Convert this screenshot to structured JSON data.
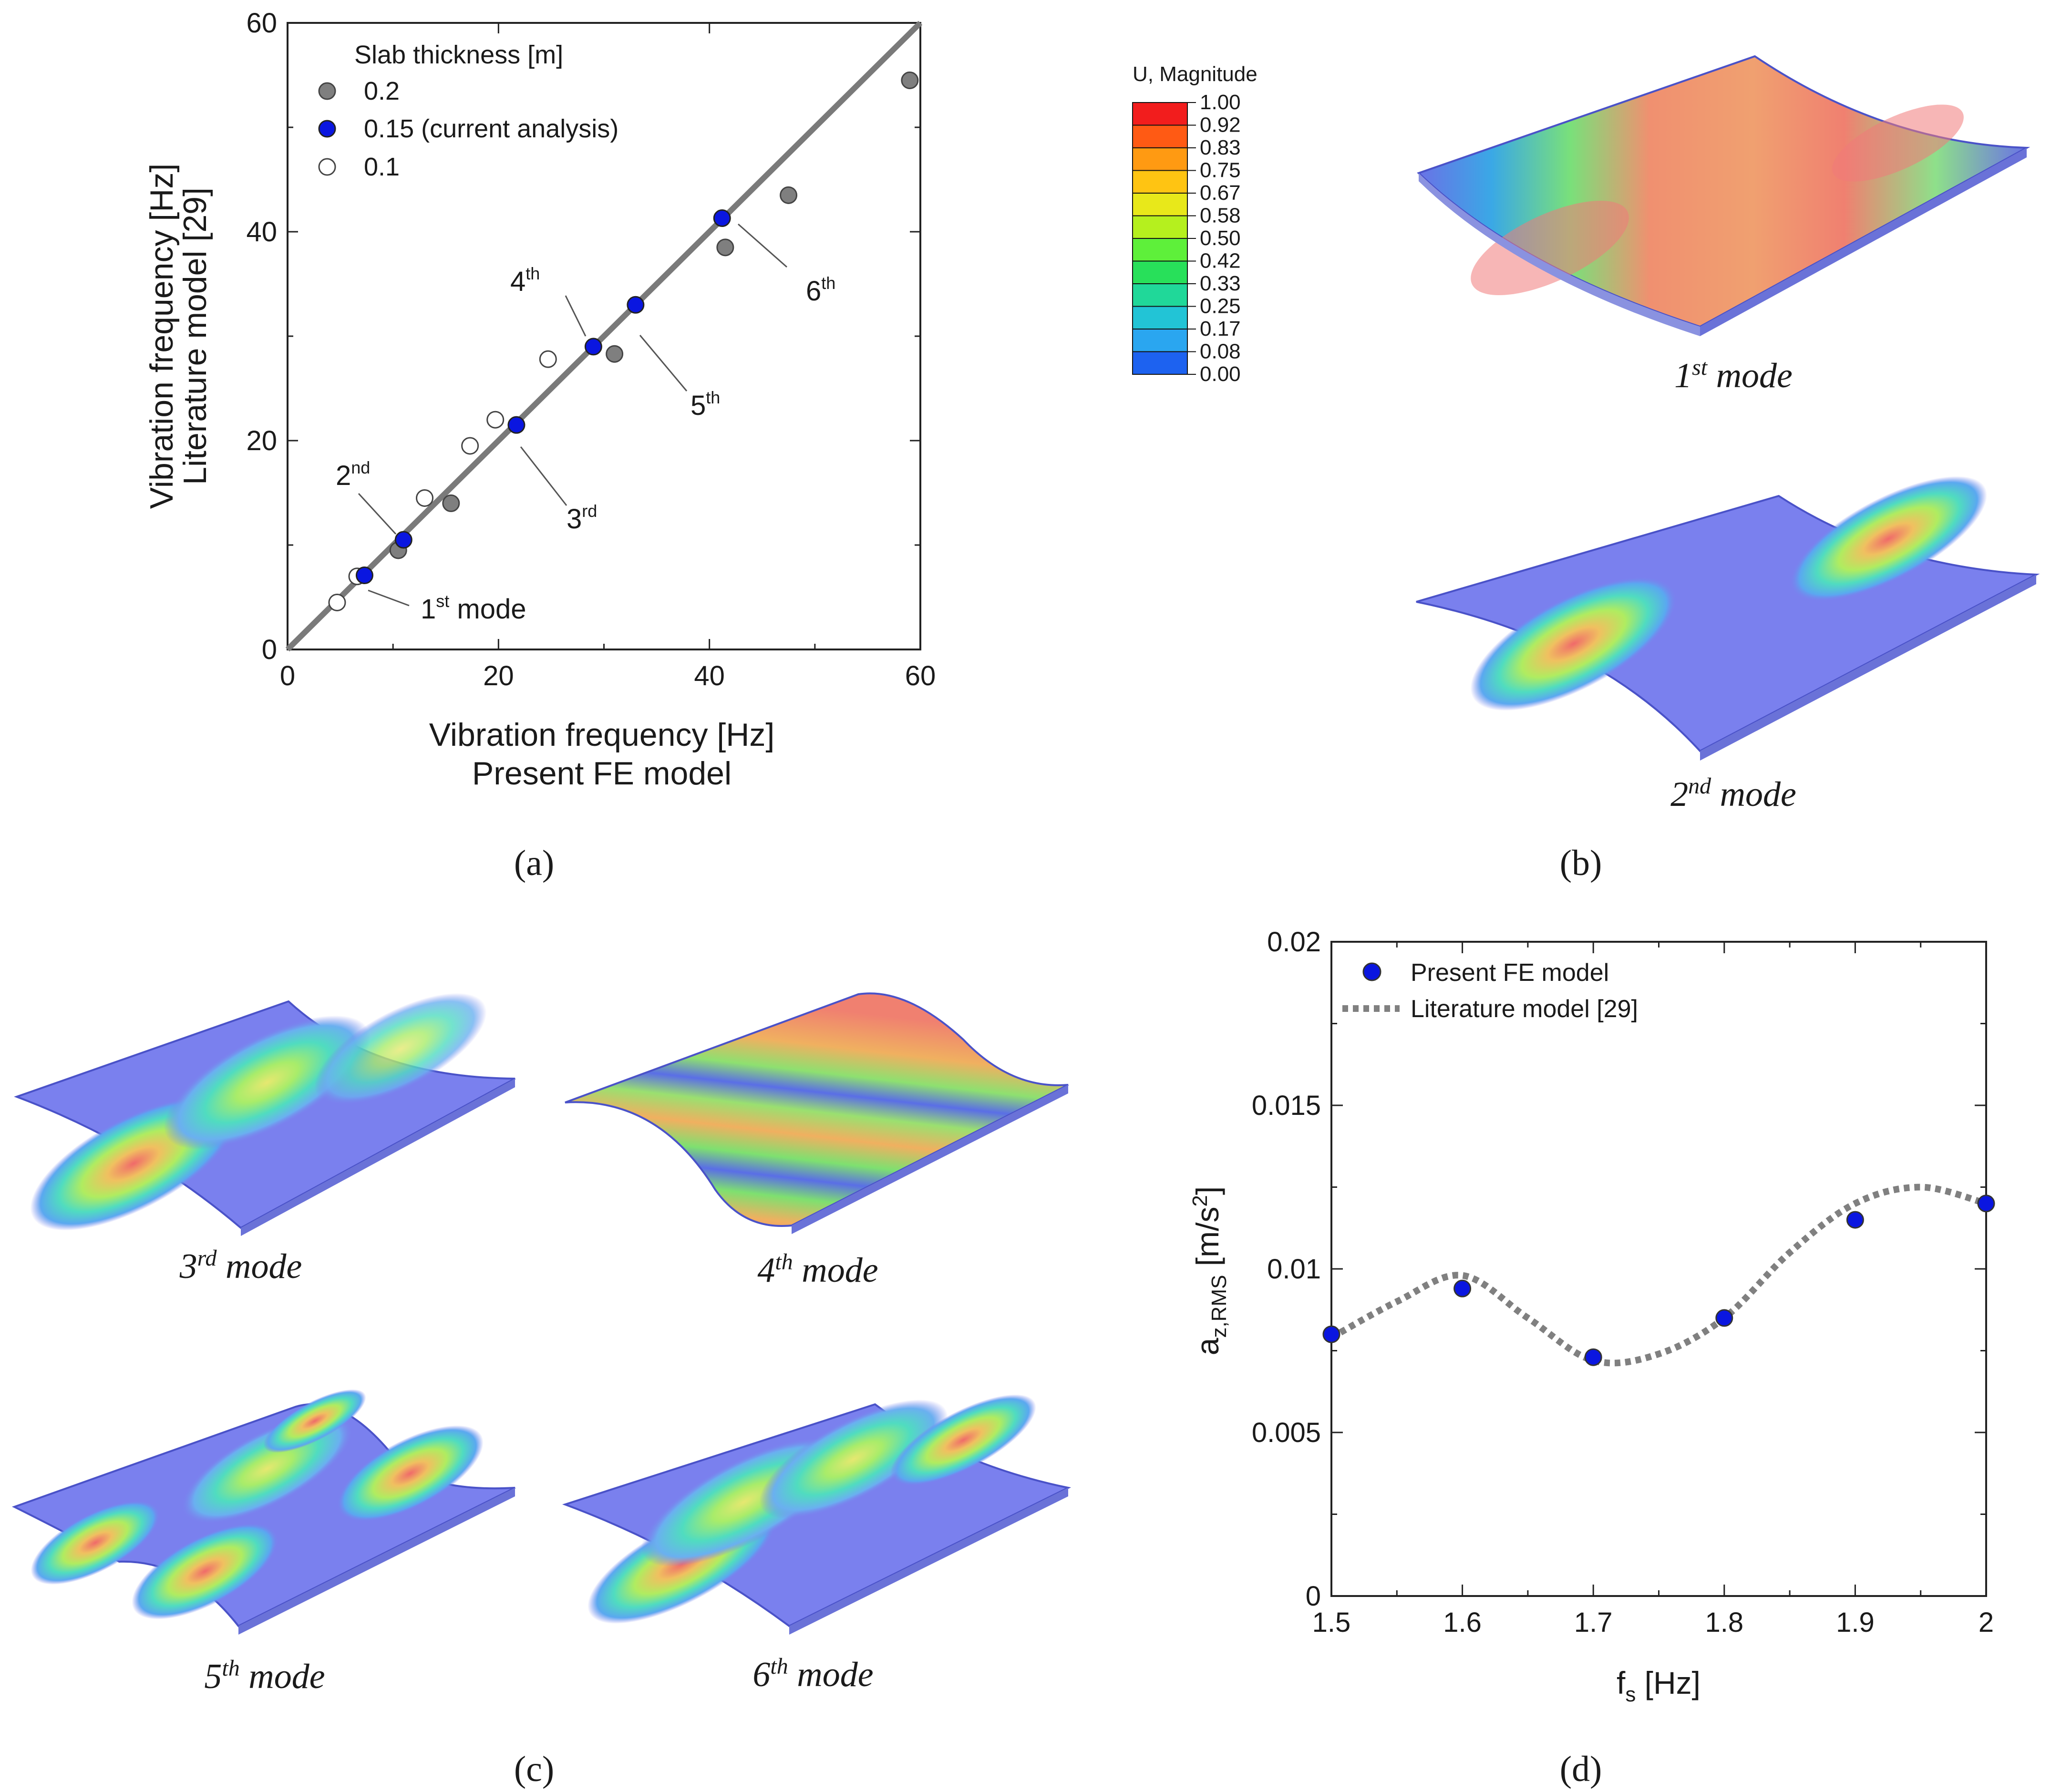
{
  "panel_labels": {
    "a": "(a)",
    "b": "(b)",
    "c": "(c)",
    "d": "(d)"
  },
  "chart_data": [
    {
      "id": "a",
      "type": "scatter",
      "xlabel": "Vibration frequency  [Hz]",
      "xlabel2": "Present FE model",
      "ylabel": "Vibration frequency  [Hz]",
      "ylabel2": "Literature model [29]",
      "xlim": [
        0,
        60
      ],
      "ylim": [
        0,
        60
      ],
      "xticks": [
        0,
        20,
        40,
        60
      ],
      "yticks": [
        0,
        20,
        40,
        60
      ],
      "grid": false,
      "legend_title": "Slab thickness  [m]",
      "reference_line": [
        [
          0,
          0
        ],
        [
          60,
          60
        ]
      ],
      "series": [
        {
          "name": "0.2",
          "color": "#7f7f7f",
          "x": [
            10.5,
            15.5,
            31,
            41.5,
            47.5,
            59
          ],
          "y": [
            9.5,
            14,
            28.3,
            38.5,
            43.5,
            54.5
          ]
        },
        {
          "name": "0.15 (current analysis)",
          "color": "#0a16e0",
          "x": [
            7.3,
            11,
            21.7,
            29,
            33,
            41.2
          ],
          "y": [
            7.1,
            10.5,
            21.5,
            29,
            33,
            41.3
          ]
        },
        {
          "name": "0.1",
          "color": "#ffffff",
          "x": [
            4.7,
            6.6,
            13,
            17.3,
            19.7,
            24.7
          ],
          "y": [
            4.5,
            7,
            14.5,
            19.5,
            22,
            27.8
          ]
        }
      ],
      "annotations": [
        {
          "base": "1",
          "sup": "st",
          "tail": " mode"
        },
        {
          "base": "2",
          "sup": "nd",
          "tail": ""
        },
        {
          "base": "3",
          "sup": "rd",
          "tail": ""
        },
        {
          "base": "4",
          "sup": "th",
          "tail": ""
        },
        {
          "base": "5",
          "sup": "th",
          "tail": ""
        },
        {
          "base": "6",
          "sup": "th",
          "tail": ""
        }
      ]
    },
    {
      "id": "d",
      "type": "line",
      "xlabel_base": "f",
      "xlabel_sub": "s",
      "xlabel_tail": " [Hz]",
      "ylabel_base": "a",
      "ylabel_sub": "z,RMS",
      "ylabel_tail": " [m/s",
      "ylabel_sup": "2",
      "ylabel_end": "]",
      "xlim": [
        1.5,
        2
      ],
      "ylim": [
        0,
        0.02
      ],
      "xticks": [
        "1.5",
        "1.6",
        "1.7",
        "1.8",
        "1.9",
        "2"
      ],
      "yticks": [
        "0",
        "0.005",
        "0.01",
        "0.015",
        "0.02"
      ],
      "grid": false,
      "legend": "top-left",
      "series": [
        {
          "name": "Present FE model",
          "style": "markers",
          "color": "#0a16e0",
          "x": [
            1.5,
            1.6,
            1.7,
            1.8,
            1.9,
            2.0
          ],
          "y": [
            0.008,
            0.0094,
            0.0073,
            0.0085,
            0.0115,
            0.012
          ]
        },
        {
          "name": "Literature model [29]",
          "style": "dotted",
          "color": "#808080",
          "x": [
            1.5,
            1.55,
            1.6,
            1.65,
            1.7,
            1.75,
            1.8,
            1.85,
            1.9,
            1.95,
            2.0
          ],
          "y": [
            0.0079,
            0.009,
            0.0098,
            0.0085,
            0.0072,
            0.0074,
            0.0085,
            0.0105,
            0.012,
            0.0125,
            0.012
          ]
        }
      ]
    }
  ],
  "colorbar": {
    "title": "U, Magnitude",
    "labels": [
      "1.00",
      "0.92",
      "0.83",
      "0.75",
      "0.67",
      "0.58",
      "0.50",
      "0.42",
      "0.33",
      "0.25",
      "0.17",
      "0.08",
      "0.00"
    ],
    "colors": [
      "#f21d1d",
      "#ff5a14",
      "#ff9a12",
      "#ffc412",
      "#e8e81a",
      "#b5f01e",
      "#5ef03a",
      "#28e05a",
      "#20d899",
      "#22c4d6",
      "#2aa6f0",
      "#1d62f0",
      "#0a16e0"
    ]
  },
  "modes": {
    "m1": {
      "base": "1",
      "sup": "st",
      "tail": " mode"
    },
    "m2": {
      "base": "2",
      "sup": "nd",
      "tail": " mode"
    },
    "m3": {
      "base": "3",
      "sup": "rd",
      "tail": " mode"
    },
    "m4": {
      "base": "4",
      "sup": "th",
      "tail": " mode"
    },
    "m5": {
      "base": "5",
      "sup": "th",
      "tail": " mode"
    },
    "m6": {
      "base": "6",
      "sup": "th",
      "tail": " mode"
    }
  }
}
